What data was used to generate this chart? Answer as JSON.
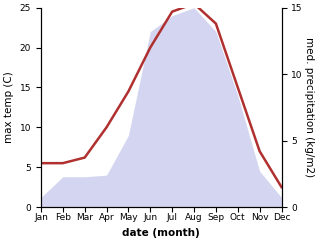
{
  "months": [
    "Jan",
    "Feb",
    "Mar",
    "Apr",
    "May",
    "Jun",
    "Jul",
    "Aug",
    "Sep",
    "Oct",
    "Nov",
    "Dec"
  ],
  "temp": [
    5.5,
    5.5,
    6.2,
    10.0,
    14.5,
    20.0,
    24.5,
    25.5,
    23.0,
    15.0,
    7.0,
    2.5
  ],
  "precip": [
    1.2,
    3.8,
    3.8,
    4.0,
    9.0,
    22.0,
    24.0,
    25.0,
    22.0,
    14.0,
    4.5,
    1.2
  ],
  "temp_color": "#b03030",
  "precip_fill_color": "#b8bce8",
  "precip_fill_alpha": 0.6,
  "ylabel_left": "max temp (C)",
  "ylabel_right": "med. precipitation (kg/m2)",
  "xlabel": "date (month)",
  "ylim_left": [
    0,
    25
  ],
  "ylim_right": [
    0,
    15
  ],
  "yticks_left": [
    0,
    5,
    10,
    15,
    20,
    25
  ],
  "yticks_right": [
    0,
    5,
    10,
    15
  ],
  "bg_color": "#ffffff",
  "label_fontsize": 7.5,
  "tick_fontsize": 6.5,
  "line_width": 1.8
}
